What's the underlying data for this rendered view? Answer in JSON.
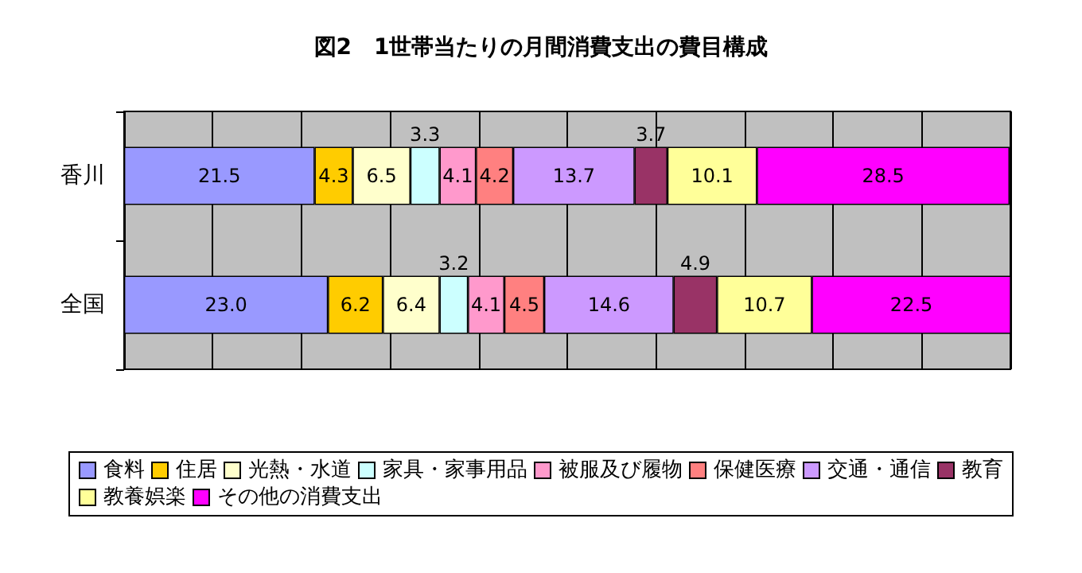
{
  "chart_data": {
    "type": "bar",
    "orientation": "horizontal",
    "stacked": true,
    "title": "図2　1世帯当たりの月間消費支出の費目構成",
    "categories": [
      "香川",
      "全国"
    ],
    "xlim": [
      0,
      100
    ],
    "tick_labels": "y",
    "grid": "x",
    "legend": "bottom",
    "series": [
      {
        "name": "食料",
        "color": "#9999ff",
        "values": [
          21.5,
          23.0
        ],
        "value_labels": [
          "21.5",
          "23.0"
        ]
      },
      {
        "name": "住居",
        "color": "#ffcc00",
        "values": [
          4.3,
          6.2
        ],
        "value_labels": [
          "4.3",
          "6.2"
        ]
      },
      {
        "name": "光熱・水道",
        "color": "#ffffcc",
        "values": [
          6.5,
          6.4
        ],
        "value_labels": [
          "6.5",
          "6.4"
        ]
      },
      {
        "name": "家具・家事用品",
        "color": "#ccffff",
        "values": [
          3.3,
          3.2
        ],
        "value_labels": [
          "3.3",
          "3.2"
        ]
      },
      {
        "name": "被服及び履物",
        "color": "#ff99cc",
        "values": [
          4.1,
          4.1
        ],
        "value_labels": [
          "4.1",
          "4.1"
        ]
      },
      {
        "name": "保健医療",
        "color": "#ff8080",
        "values": [
          4.2,
          4.5
        ],
        "value_labels": [
          "4.2",
          "4.5"
        ]
      },
      {
        "name": "交通・通信",
        "color": "#cc99ff",
        "values": [
          13.7,
          14.6
        ],
        "value_labels": [
          "13.7",
          "14.6"
        ]
      },
      {
        "name": "教育",
        "color": "#993366",
        "values": [
          3.7,
          4.9
        ],
        "value_labels": [
          "3.7",
          "4.9"
        ]
      },
      {
        "name": "教養娯楽",
        "color": "#ffff99",
        "values": [
          10.1,
          10.7
        ],
        "value_labels": [
          "10.1",
          "10.7"
        ]
      },
      {
        "name": "その他の消費支出",
        "color": "#ff00ff",
        "values": [
          28.5,
          22.5
        ],
        "value_labels": [
          "28.5",
          "22.5"
        ]
      }
    ]
  }
}
